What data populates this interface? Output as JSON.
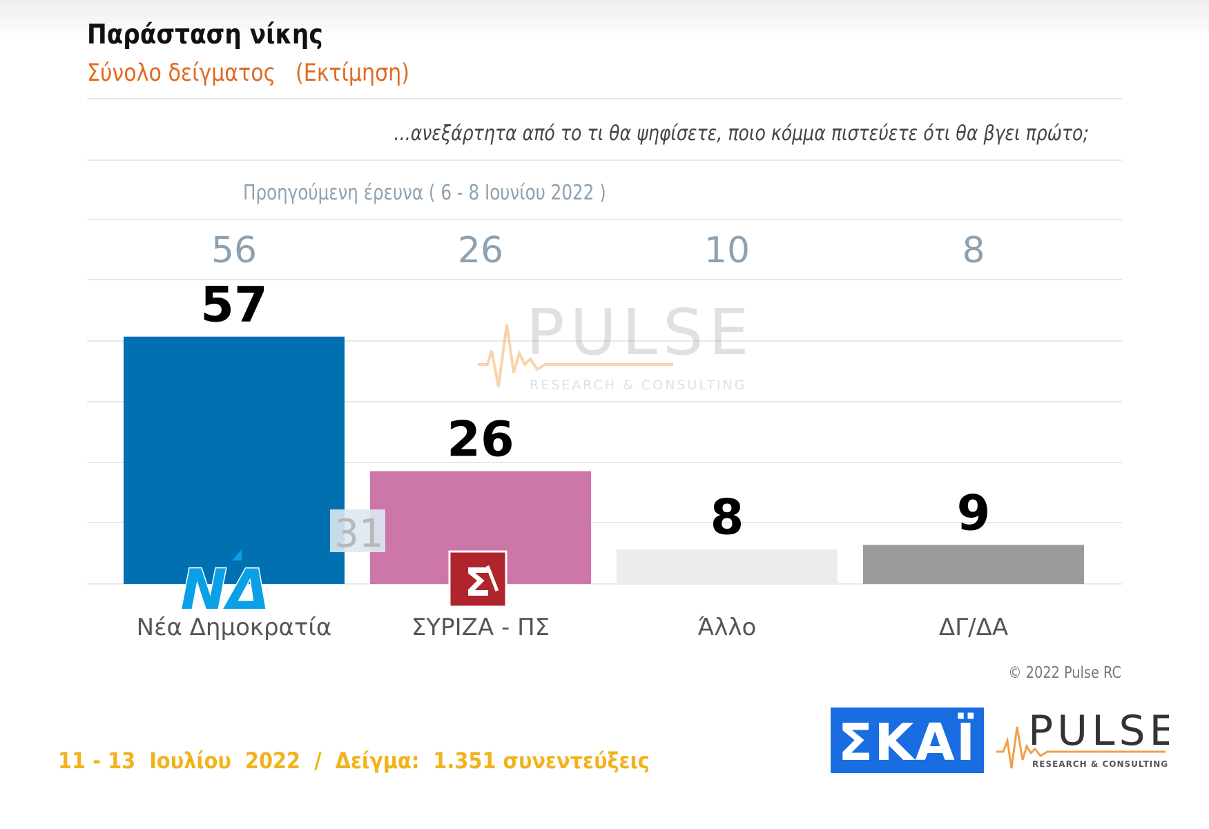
{
  "header": {
    "title": "Παράσταση νίκης",
    "subtitle": "Σύνολο δείγματος   (Εκτίμηση)"
  },
  "question": "...ανεξάρτητα από το τι θα ψηφίσετε, ποιο κόμμα πιστεύετε ότι θα βγει πρώτο;",
  "previous_survey_label": "Προηγούμενη έρευνα  ( 6 - 8 Ιουνίου  2022 )",
  "chart_data": {
    "type": "bar",
    "categories": [
      "Νέα Δημοκρατία",
      "ΣΥΡΙΖΑ - ΠΣ",
      "Άλλο",
      "ΔΓ/ΔΑ"
    ],
    "values": [
      57,
      26,
      8,
      9
    ],
    "previous_values": [
      56,
      26,
      10,
      8
    ],
    "gap_label": "31",
    "ylim": [
      0,
      70
    ],
    "grid": true,
    "colors": [
      "#0070b0",
      "#cc77a8",
      "#ececec",
      "#9b9b9b"
    ]
  },
  "watermark": {
    "brand": "PULSE",
    "tagline": "RESEARCH & CONSULTING"
  },
  "copyright": "© 2022 Pulse RC",
  "footer": {
    "info": "11 - 13  Ιουλίου  2022  /  Δείγμα:  1.351 συνεντεύξεις"
  },
  "logos": {
    "nd": "ΝΔ",
    "syriza": "Σ",
    "skai": "ΣΚΑΪ",
    "pulse": "PULSE",
    "pulse_tagline": "RESEARCH & CONSULTING"
  },
  "accent_colors": {
    "title": "#111111",
    "subtitle": "#e06a22",
    "footer": "#f2b21b",
    "previous": "#8ea1b0",
    "skai_blue": "#1a6de0"
  }
}
